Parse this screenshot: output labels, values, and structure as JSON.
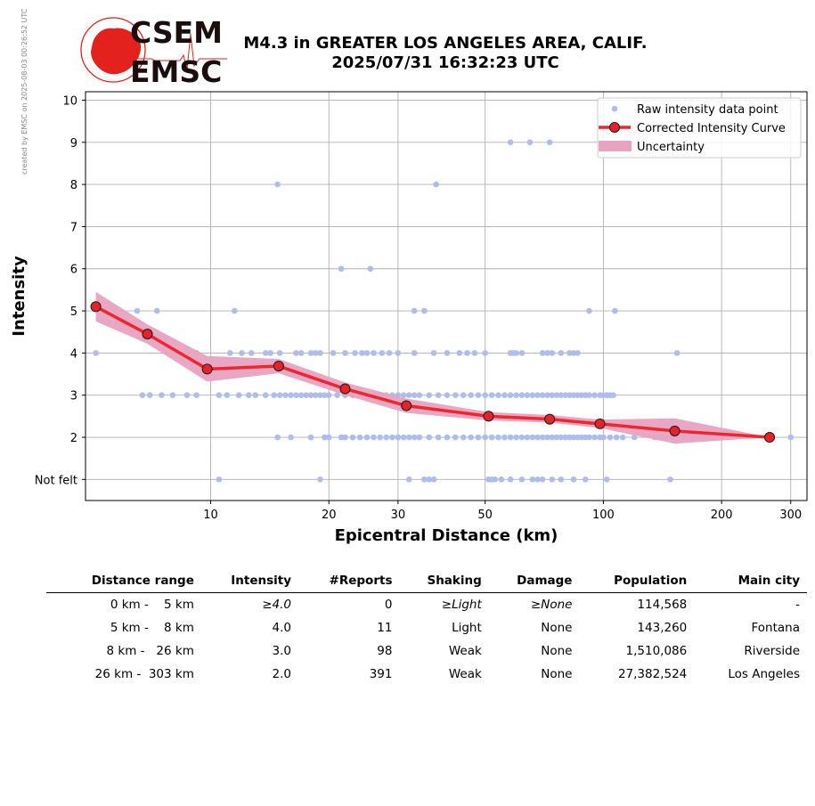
{
  "side_note": "created by EMSC on 2025-08-03 00:26:52 UTC",
  "logo": {
    "top": "CSEM",
    "bottom": "EMSC",
    "color": "#e3221d"
  },
  "title_line1": "M4.3 in GREATER LOS ANGELES AREA, CALIF.",
  "title_line2": "2025/07/31 16:32:23 UTC",
  "chart_data": {
    "type": "scatter",
    "xlabel": "Epicentral Distance (km)",
    "ylabel": "Intensity",
    "xscale": "log",
    "xlim": [
      4.8,
      330
    ],
    "ylim": [
      0.5,
      10.2
    ],
    "x_ticks": [
      10,
      20,
      30,
      50,
      100,
      200,
      300
    ],
    "y_ticks": [
      {
        "v": 1,
        "label": "Not felt"
      },
      {
        "v": 2,
        "label": "2"
      },
      {
        "v": 3,
        "label": "3"
      },
      {
        "v": 4,
        "label": "4"
      },
      {
        "v": 5,
        "label": "5"
      },
      {
        "v": 6,
        "label": "6"
      },
      {
        "v": 7,
        "label": "7"
      },
      {
        "v": 8,
        "label": "8"
      },
      {
        "v": 9,
        "label": "9"
      },
      {
        "v": 10,
        "label": "10"
      }
    ],
    "grid": true,
    "legend_position": "top-right",
    "legend": [
      "Raw intensity data point",
      "Corrected Intensity Curve",
      "Uncertainty"
    ],
    "colors": {
      "raw": "#aebde9",
      "curve": "#f0262f",
      "marker": "#e8212a",
      "band": "#e7a3c0"
    },
    "raw_points": [
      [
        5.1,
        4
      ],
      [
        6.5,
        5
      ],
      [
        7.3,
        5
      ],
      [
        10.5,
        1
      ],
      [
        14.8,
        8
      ],
      [
        11.5,
        5
      ],
      [
        21.5,
        6
      ],
      [
        25.5,
        6
      ],
      [
        33,
        5
      ],
      [
        35,
        5
      ],
      [
        37.5,
        8
      ],
      [
        58,
        9
      ],
      [
        65,
        9
      ],
      [
        73,
        9
      ],
      [
        92,
        5
      ],
      [
        107,
        5
      ],
      [
        154,
        4
      ],
      [
        6.7,
        3
      ],
      [
        7.0,
        3
      ],
      [
        7.5,
        3
      ],
      [
        8.0,
        3
      ],
      [
        8.7,
        3
      ],
      [
        9.2,
        3
      ],
      [
        10.5,
        3
      ],
      [
        11,
        3
      ],
      [
        11.8,
        3
      ],
      [
        12.5,
        3
      ],
      [
        13,
        3
      ],
      [
        13.8,
        3
      ],
      [
        14.5,
        3
      ],
      [
        15,
        3
      ],
      [
        15.5,
        3
      ],
      [
        16,
        3
      ],
      [
        16.5,
        3
      ],
      [
        17,
        3
      ],
      [
        17.5,
        3
      ],
      [
        18,
        3
      ],
      [
        18.5,
        3
      ],
      [
        19,
        3
      ],
      [
        19.5,
        3
      ],
      [
        20,
        3
      ],
      [
        21,
        3
      ],
      [
        22,
        3
      ],
      [
        23,
        3
      ],
      [
        24,
        3
      ],
      [
        25,
        3
      ],
      [
        26,
        3
      ],
      [
        27,
        3
      ],
      [
        28,
        3
      ],
      [
        29,
        3
      ],
      [
        30,
        3
      ],
      [
        31,
        3
      ],
      [
        32,
        3
      ],
      [
        33,
        3
      ],
      [
        34,
        3
      ],
      [
        36,
        3
      ],
      [
        38,
        3
      ],
      [
        40,
        3
      ],
      [
        42,
        3
      ],
      [
        44,
        3
      ],
      [
        46,
        3
      ],
      [
        48,
        3
      ],
      [
        50,
        3
      ],
      [
        52,
        3
      ],
      [
        54,
        3
      ],
      [
        56,
        3
      ],
      [
        58,
        3
      ],
      [
        60,
        3
      ],
      [
        62,
        3
      ],
      [
        64,
        3
      ],
      [
        66,
        3
      ],
      [
        68,
        3
      ],
      [
        70,
        3
      ],
      [
        72,
        3
      ],
      [
        74,
        3
      ],
      [
        76,
        3
      ],
      [
        78,
        3
      ],
      [
        80,
        3
      ],
      [
        82,
        3
      ],
      [
        84,
        3
      ],
      [
        86,
        3
      ],
      [
        88,
        3
      ],
      [
        90,
        3
      ],
      [
        92,
        3
      ],
      [
        95,
        3
      ],
      [
        98,
        3
      ],
      [
        100,
        3
      ],
      [
        102,
        3
      ],
      [
        104,
        3
      ],
      [
        106,
        3
      ],
      [
        9.2,
        4
      ],
      [
        11.2,
        4
      ],
      [
        12,
        4
      ],
      [
        12.7,
        4
      ],
      [
        13.8,
        4
      ],
      [
        14.2,
        4
      ],
      [
        15,
        4
      ],
      [
        16.5,
        4
      ],
      [
        17,
        4
      ],
      [
        18,
        4
      ],
      [
        18.5,
        4
      ],
      [
        19,
        4
      ],
      [
        20.5,
        4
      ],
      [
        22,
        4
      ],
      [
        23.3,
        4
      ],
      [
        24.3,
        4
      ],
      [
        25,
        4
      ],
      [
        26,
        4
      ],
      [
        27.3,
        4
      ],
      [
        28.5,
        4
      ],
      [
        30,
        4
      ],
      [
        33,
        4
      ],
      [
        37,
        4
      ],
      [
        40,
        4
      ],
      [
        43,
        4
      ],
      [
        45,
        4
      ],
      [
        47,
        4
      ],
      [
        50,
        4
      ],
      [
        58,
        4
      ],
      [
        59,
        4
      ],
      [
        60,
        4
      ],
      [
        62,
        4
      ],
      [
        70,
        4
      ],
      [
        72,
        4
      ],
      [
        74,
        4
      ],
      [
        78,
        4
      ],
      [
        82,
        4
      ],
      [
        84,
        4
      ],
      [
        86,
        4
      ],
      [
        14.8,
        2
      ],
      [
        16,
        2
      ],
      [
        18,
        2
      ],
      [
        19.5,
        2
      ],
      [
        20,
        2
      ],
      [
        21.5,
        2
      ],
      [
        22,
        2
      ],
      [
        23,
        2
      ],
      [
        24,
        2
      ],
      [
        25,
        2
      ],
      [
        26,
        2
      ],
      [
        27,
        2
      ],
      [
        28,
        2
      ],
      [
        29,
        2
      ],
      [
        30,
        2
      ],
      [
        31,
        2
      ],
      [
        32,
        2
      ],
      [
        33,
        2
      ],
      [
        34,
        2
      ],
      [
        36,
        2
      ],
      [
        38,
        2
      ],
      [
        40,
        2
      ],
      [
        42,
        2
      ],
      [
        44,
        2
      ],
      [
        46,
        2
      ],
      [
        48,
        2
      ],
      [
        50,
        2
      ],
      [
        52,
        2
      ],
      [
        54,
        2
      ],
      [
        56,
        2
      ],
      [
        58,
        2
      ],
      [
        60,
        2
      ],
      [
        62,
        2
      ],
      [
        64,
        2
      ],
      [
        66,
        2
      ],
      [
        68,
        2
      ],
      [
        70,
        2
      ],
      [
        72,
        2
      ],
      [
        74,
        2
      ],
      [
        76,
        2
      ],
      [
        78,
        2
      ],
      [
        80,
        2
      ],
      [
        82,
        2
      ],
      [
        84,
        2
      ],
      [
        86,
        2
      ],
      [
        88,
        2
      ],
      [
        90,
        2
      ],
      [
        92,
        2
      ],
      [
        95,
        2
      ],
      [
        98,
        2
      ],
      [
        100,
        2
      ],
      [
        104,
        2
      ],
      [
        108,
        2
      ],
      [
        112,
        2
      ],
      [
        120,
        2
      ],
      [
        135,
        2
      ],
      [
        140,
        2
      ],
      [
        150,
        2
      ],
      [
        160,
        2
      ],
      [
        300,
        2
      ],
      [
        19,
        1
      ],
      [
        32,
        1
      ],
      [
        35,
        1
      ],
      [
        36,
        1
      ],
      [
        37,
        1
      ],
      [
        51,
        1
      ],
      [
        52,
        1
      ],
      [
        53,
        1
      ],
      [
        55,
        1
      ],
      [
        58,
        1
      ],
      [
        62,
        1
      ],
      [
        66,
        1
      ],
      [
        68,
        1
      ],
      [
        70,
        1
      ],
      [
        74,
        1
      ],
      [
        78,
        1
      ],
      [
        84,
        1
      ],
      [
        90,
        1
      ],
      [
        102,
        1
      ],
      [
        148,
        1
      ]
    ],
    "curve": [
      [
        5.1,
        5.1
      ],
      [
        6.9,
        4.45
      ],
      [
        9.8,
        3.62
      ],
      [
        14.9,
        3.69
      ],
      [
        22,
        3.15
      ],
      [
        31.5,
        2.75
      ],
      [
        51,
        2.5
      ],
      [
        73,
        2.43
      ],
      [
        98,
        2.32
      ],
      [
        152,
        2.15
      ],
      [
        265,
        2.0
      ]
    ],
    "band_upper": [
      [
        5.1,
        5.45
      ],
      [
        6.9,
        4.68
      ],
      [
        9.8,
        3.93
      ],
      [
        14.9,
        3.86
      ],
      [
        22,
        3.3
      ],
      [
        31.5,
        2.92
      ],
      [
        51,
        2.6
      ],
      [
        73,
        2.53
      ],
      [
        98,
        2.42
      ],
      [
        152,
        2.45
      ],
      [
        265,
        2.0
      ]
    ],
    "band_lower": [
      [
        5.1,
        4.75
      ],
      [
        6.9,
        4.22
      ],
      [
        9.8,
        3.32
      ],
      [
        14.9,
        3.52
      ],
      [
        22,
        3.0
      ],
      [
        31.5,
        2.58
      ],
      [
        51,
        2.4
      ],
      [
        73,
        2.35
      ],
      [
        98,
        2.22
      ],
      [
        152,
        1.85
      ],
      [
        265,
        2.0
      ]
    ]
  },
  "table": {
    "headers": [
      "Distance range",
      "Intensity",
      "#Reports",
      "Shaking",
      "Damage",
      "Population",
      "Main city"
    ],
    "rows": [
      {
        "range": "0 km -    5 km",
        "intensity": "≥4.0",
        "reports": "0",
        "shaking": "≥Light",
        "damage": "≥None",
        "population": "114,568",
        "city": "-",
        "italic": true
      },
      {
        "range": "5 km -    8 km",
        "intensity": "4.0",
        "reports": "11",
        "shaking": "Light",
        "damage": "None",
        "population": "143,260",
        "city": "Fontana",
        "italic": false
      },
      {
        "range": "8 km -   26 km",
        "intensity": "3.0",
        "reports": "98",
        "shaking": "Weak",
        "damage": "None",
        "population": "1,510,086",
        "city": "Riverside",
        "italic": false
      },
      {
        "range": "26 km -  303 km",
        "intensity": "2.0",
        "reports": "391",
        "shaking": "Weak",
        "damage": "None",
        "population": "27,382,524",
        "city": "Los Angeles",
        "italic": false
      }
    ]
  }
}
